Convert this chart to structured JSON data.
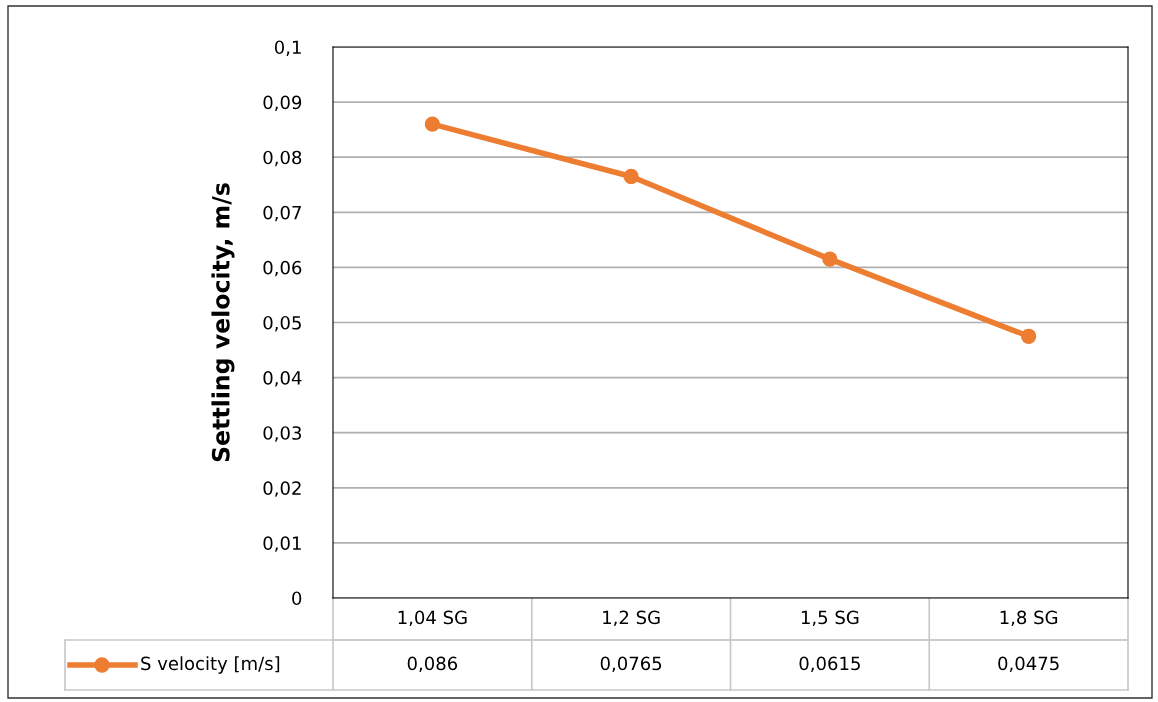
{
  "chart_data": {
    "type": "line",
    "ylabel": "Settling velocity, m/s",
    "categories": [
      "1,04 SG",
      "1,2 SG",
      "1,5 SG",
      "1,8 SG"
    ],
    "series": [
      {
        "name": "S velocity [m/s]",
        "color": "#ed7d31",
        "values": [
          0.086,
          0.0765,
          0.0615,
          0.0475
        ],
        "value_labels": [
          "0,086",
          "0,0765",
          "0,0615",
          "0,0475"
        ]
      }
    ],
    "ylim": [
      0,
      0.1
    ],
    "yticks": [
      {
        "value": 0,
        "label": "0"
      },
      {
        "value": 0.01,
        "label": "0,01"
      },
      {
        "value": 0.02,
        "label": "0,02"
      },
      {
        "value": 0.03,
        "label": "0,03"
      },
      {
        "value": 0.04,
        "label": "0,04"
      },
      {
        "value": 0.05,
        "label": "0,05"
      },
      {
        "value": 0.06,
        "label": "0,06"
      },
      {
        "value": 0.07,
        "label": "0,07"
      },
      {
        "value": 0.08,
        "label": "0,08"
      },
      {
        "value": 0.09,
        "label": "0,09"
      },
      {
        "value": 0.1,
        "label": "0,1"
      }
    ],
    "grid": "y",
    "legend": "bottom",
    "marker": "circle",
    "line_style": "solid"
  }
}
